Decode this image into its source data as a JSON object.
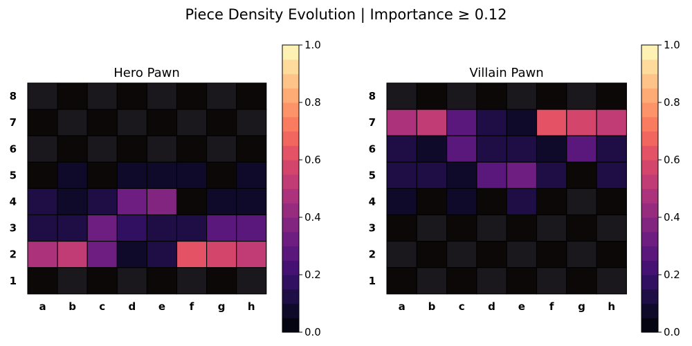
{
  "chart_data": {
    "type": "heatmap",
    "title": "Piece Density Evolution | Importance ≥ 0.12",
    "columns": [
      "a",
      "b",
      "c",
      "d",
      "e",
      "f",
      "g",
      "h"
    ],
    "rows": [
      "8",
      "7",
      "6",
      "5",
      "4",
      "3",
      "2",
      "1"
    ],
    "colorbar": {
      "range": [
        0.0,
        1.0
      ],
      "ticks": [
        "0.0",
        "0.2",
        "0.4",
        "0.6",
        "0.8",
        "1.0"
      ],
      "colormap": "magma (discrete, 20 levels)"
    },
    "grid": false,
    "panels": [
      {
        "title": "Hero Pawn",
        "values": [
          [
            0.0,
            0.0,
            0.0,
            0.0,
            0.0,
            0.0,
            0.0,
            0.0
          ],
          [
            0.0,
            0.0,
            0.0,
            0.0,
            0.0,
            0.0,
            0.0,
            0.0
          ],
          [
            0.0,
            0.0,
            0.0,
            0.0,
            0.0,
            0.0,
            0.0,
            0.0
          ],
          [
            0.0,
            0.06,
            0.0,
            0.06,
            0.06,
            0.06,
            0.0,
            0.06
          ],
          [
            0.12,
            0.06,
            0.12,
            0.32,
            0.38,
            0.03,
            0.06,
            0.09
          ],
          [
            0.12,
            0.14,
            0.32,
            0.18,
            0.14,
            0.14,
            0.26,
            0.26
          ],
          [
            0.45,
            0.5,
            0.3,
            0.09,
            0.12,
            0.62,
            0.56,
            0.53
          ],
          [
            0.0,
            0.0,
            0.0,
            0.0,
            0.0,
            0.0,
            0.0,
            0.0
          ]
        ]
      },
      {
        "title": "Villain Pawn",
        "values": [
          [
            0.0,
            0.0,
            0.0,
            0.0,
            0.0,
            0.0,
            0.0,
            0.0
          ],
          [
            0.45,
            0.5,
            0.27,
            0.12,
            0.09,
            0.6,
            0.56,
            0.53
          ],
          [
            0.12,
            0.09,
            0.26,
            0.14,
            0.14,
            0.09,
            0.26,
            0.12
          ],
          [
            0.14,
            0.12,
            0.09,
            0.26,
            0.3,
            0.12,
            0.0,
            0.14
          ],
          [
            0.06,
            0.0,
            0.06,
            0.0,
            0.1,
            0.0,
            0.0,
            0.0
          ],
          [
            0.0,
            0.0,
            0.0,
            0.0,
            0.0,
            0.0,
            0.0,
            0.0
          ],
          [
            0.0,
            0.0,
            0.0,
            0.0,
            0.0,
            0.0,
            0.0,
            0.0
          ],
          [
            0.0,
            0.0,
            0.0,
            0.0,
            0.0,
            0.0,
            0.0,
            0.0
          ]
        ]
      }
    ]
  }
}
